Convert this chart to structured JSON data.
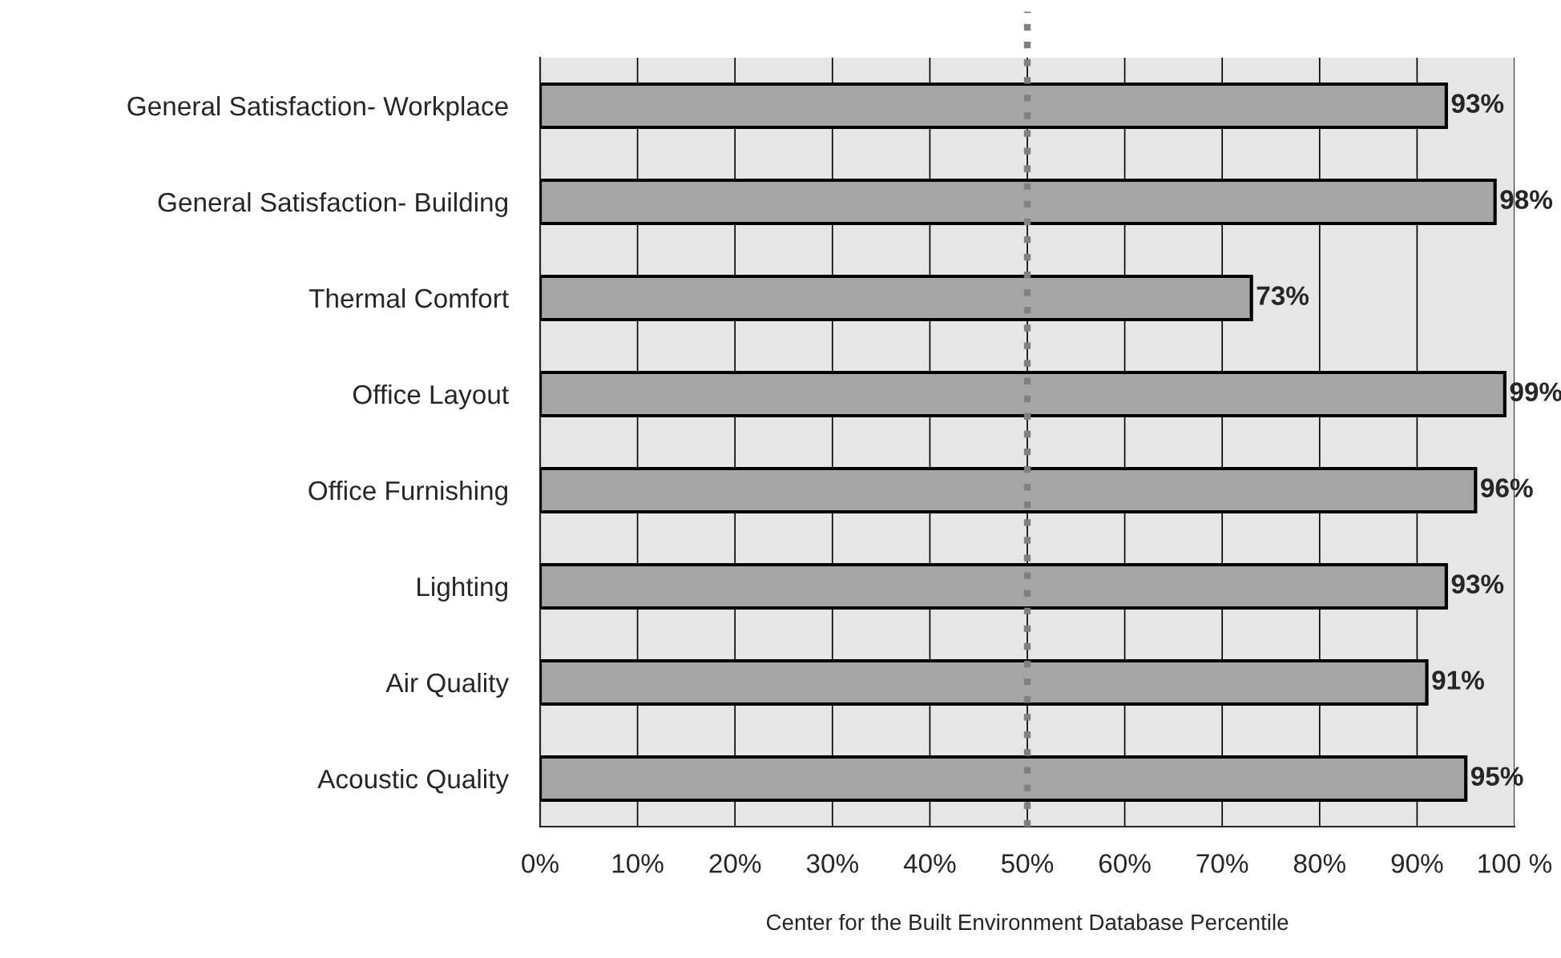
{
  "chart_data": {
    "type": "bar",
    "orientation": "horizontal",
    "xlabel": "Center for the Built Environment Database Percentile",
    "categories": [
      "General Satisfaction- Workplace",
      "General Satisfaction- Building",
      "Thermal Comfort",
      "Office Layout",
      "Office Furnishing",
      "Lighting",
      "Air Quality",
      "Acoustic Quality"
    ],
    "values": [
      93,
      98,
      73,
      99,
      96,
      93,
      91,
      95
    ],
    "value_labels": [
      "93%",
      "98%",
      "73%",
      "99%",
      "96%",
      "93%",
      "91%",
      "95%"
    ],
    "color": "#a6a6a6",
    "xlim": [
      0,
      100
    ],
    "xticks": [
      {
        "value": 0,
        "label": "0%"
      },
      {
        "value": 10,
        "label": "10%"
      },
      {
        "value": 20,
        "label": "20%"
      },
      {
        "value": 30,
        "label": "30%"
      },
      {
        "value": 40,
        "label": "40%"
      },
      {
        "value": 50,
        "label": "50%"
      },
      {
        "value": 60,
        "label": "60%"
      },
      {
        "value": 70,
        "label": "70%"
      },
      {
        "value": 80,
        "label": "80%"
      },
      {
        "value": 90,
        "label": "90%"
      },
      {
        "value": 100,
        "label": "100 %"
      }
    ],
    "ref_lines": [
      {
        "axis": "x",
        "value": 50,
        "color": "#808080",
        "line_style": "dotted"
      }
    ],
    "grid": "x",
    "legend": false
  }
}
